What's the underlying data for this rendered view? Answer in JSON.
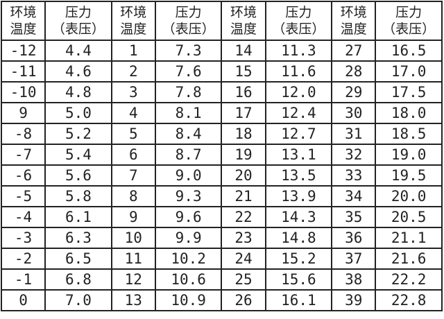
{
  "table": {
    "headers": [
      [
        "环境",
        "温度"
      ],
      [
        "压力",
        "（表压）"
      ],
      [
        "环境",
        "温度"
      ],
      [
        "压力",
        "（表压）"
      ],
      [
        "环境",
        "温度"
      ],
      [
        "压力",
        "（表压）"
      ],
      [
        "环境",
        "温度"
      ],
      [
        "压力",
        "（表压）"
      ]
    ],
    "rows": [
      [
        "-12",
        "4.4",
        "1",
        "7.3",
        "14",
        "11.3",
        "27",
        "16.5"
      ],
      [
        "-11",
        "4.6",
        "2",
        "7.6",
        "15",
        "11.6",
        "28",
        "17.0"
      ],
      [
        "-10",
        "4.8",
        "3",
        "7.8",
        "16",
        "12.0",
        "29",
        "17.5"
      ],
      [
        "9",
        "5.0",
        "4",
        "8.1",
        "17",
        "12.4",
        "30",
        "18.0"
      ],
      [
        "-8",
        "5.2",
        "5",
        "8.4",
        "18",
        "12.7",
        "31",
        "18.5"
      ],
      [
        "-7",
        "5.4",
        "6",
        "8.7",
        "19",
        "13.1",
        "32",
        "19.0"
      ],
      [
        "-6",
        "5.6",
        "7",
        "9.0",
        "20",
        "13.5",
        "33",
        "19.5"
      ],
      [
        "-5",
        "5.8",
        "8",
        "9.3",
        "21",
        "13.9",
        "34",
        "20.0"
      ],
      [
        "-4",
        "6.1",
        "9",
        "9.6",
        "22",
        "14.3",
        "35",
        "20.5"
      ],
      [
        "-3",
        "6.3",
        "10",
        "9.9",
        "23",
        "14.8",
        "36",
        "21.1"
      ],
      [
        "-2",
        "6.5",
        "11",
        "10.2",
        "24",
        "15.2",
        "37",
        "21.6"
      ],
      [
        "-1",
        "6.8",
        "12",
        "10.6",
        "25",
        "15.6",
        "38",
        "22.2"
      ],
      [
        "0",
        "7.0",
        "13",
        "10.9",
        "26",
        "16.1",
        "39",
        "22.8"
      ]
    ]
  }
}
